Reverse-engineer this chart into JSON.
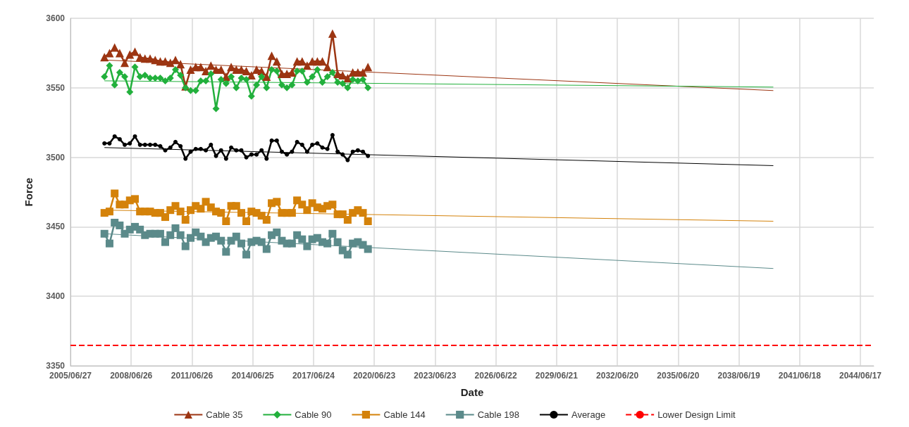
{
  "chart_data": {
    "type": "line",
    "xlabel": "Date",
    "ylabel": "Force",
    "x": [
      "2007-03",
      "2007-06",
      "2007-09",
      "2007-12",
      "2008-03",
      "2008-06",
      "2008-09",
      "2008-12",
      "2009-03",
      "2009-06",
      "2009-09",
      "2009-12",
      "2010-03",
      "2010-06",
      "2010-09",
      "2010-12",
      "2011-03",
      "2011-06",
      "2011-09",
      "2011-12",
      "2012-03",
      "2012-06",
      "2012-09",
      "2012-12",
      "2013-03",
      "2013-06",
      "2013-09",
      "2013-12",
      "2014-03",
      "2014-06",
      "2014-09",
      "2014-12",
      "2015-03",
      "2015-06",
      "2015-09",
      "2015-12",
      "2016-03",
      "2016-06",
      "2016-09",
      "2016-12",
      "2017-03",
      "2017-06",
      "2017-09",
      "2017-12",
      "2018-03",
      "2018-06",
      "2018-09",
      "2018-12",
      "2019-03",
      "2019-06",
      "2019-09",
      "2019-12",
      "2020-03"
    ],
    "series": [
      {
        "name": "Cable 35",
        "color": "#9c3512",
        "marker": "triangle",
        "values": [
          3572,
          3575,
          3579,
          3575,
          3568,
          3574,
          3576,
          3572,
          3571,
          3571,
          3570,
          3569,
          3569,
          3568,
          3570,
          3567,
          3551,
          3563,
          3565,
          3565,
          3562,
          3566,
          3563,
          3563,
          3558,
          3565,
          3563,
          3563,
          3562,
          3559,
          3563,
          3562,
          3558,
          3573,
          3569,
          3560,
          3560,
          3561,
          3569,
          3569,
          3566,
          3569,
          3569,
          3569,
          3565,
          3589,
          3560,
          3559,
          3557,
          3561,
          3561,
          3561,
          3565
        ]
      },
      {
        "name": "Cable 90",
        "color": "#22b03c",
        "marker": "diamond",
        "values": [
          3558,
          3566,
          3552,
          3561,
          3558,
          3547,
          3565,
          3558,
          3559,
          3557,
          3557,
          3557,
          3555,
          3557,
          3563,
          3559,
          3550,
          3548,
          3548,
          3555,
          3555,
          3560,
          3535,
          3556,
          3553,
          3558,
          3550,
          3557,
          3556,
          3544,
          3552,
          3558,
          3550,
          3563,
          3562,
          3552,
          3550,
          3552,
          3562,
          3562,
          3554,
          3558,
          3563,
          3554,
          3558,
          3561,
          3554,
          3553,
          3550,
          3556,
          3555,
          3556,
          3550
        ]
      },
      {
        "name": "Cable 144",
        "color": "#d4820a",
        "marker": "square",
        "values": [
          3460,
          3461,
          3474,
          3466,
          3466,
          3469,
          3470,
          3461,
          3461,
          3461,
          3460,
          3460,
          3457,
          3462,
          3465,
          3461,
          3455,
          3462,
          3465,
          3463,
          3468,
          3464,
          3461,
          3460,
          3454,
          3465,
          3465,
          3460,
          3454,
          3461,
          3460,
          3458,
          3455,
          3467,
          3468,
          3460,
          3460,
          3460,
          3469,
          3466,
          3462,
          3467,
          3464,
          3463,
          3465,
          3466,
          3459,
          3459,
          3455,
          3460,
          3462,
          3460,
          3454
        ]
      },
      {
        "name": "Cable 198",
        "color": "#5b8a8a",
        "marker": "square",
        "values": [
          3445,
          3438,
          3453,
          3451,
          3445,
          3448,
          3450,
          3448,
          3444,
          3445,
          3445,
          3445,
          3439,
          3444,
          3449,
          3444,
          3436,
          3442,
          3446,
          3443,
          3439,
          3442,
          3443,
          3440,
          3432,
          3440,
          3443,
          3438,
          3430,
          3439,
          3440,
          3439,
          3434,
          3444,
          3446,
          3440,
          3438,
          3438,
          3444,
          3441,
          3436,
          3441,
          3442,
          3439,
          3438,
          3445,
          3439,
          3433,
          3430,
          3438,
          3439,
          3437,
          3434
        ]
      },
      {
        "name": "Average",
        "color": "#000000",
        "marker": "circle",
        "values": [
          3510,
          3510,
          3515,
          3513,
          3509,
          3510,
          3515,
          3509,
          3509,
          3509,
          3509,
          3508,
          3505,
          3507,
          3511,
          3508,
          3499,
          3504,
          3506,
          3506,
          3505,
          3509,
          3501,
          3505,
          3499,
          3507,
          3505,
          3505,
          3500,
          3502,
          3502,
          3505,
          3499,
          3512,
          3512,
          3504,
          3502,
          3504,
          3511,
          3509,
          3504,
          3509,
          3510,
          3507,
          3506,
          3516,
          3504,
          3502,
          3498,
          3504,
          3505,
          3504,
          3501
        ]
      },
      {
        "color": "#9c3512",
        "marker": "none",
        "x": [
          "2007-03",
          "2040-03"
        ],
        "values": [
          3570,
          3548
        ]
      },
      {
        "color": "#22b03c",
        "marker": "none",
        "x": [
          "2007-03",
          "2040-03"
        ],
        "values": [
          3555,
          3550.5
        ]
      },
      {
        "color": "#d4820a",
        "marker": "none",
        "x": [
          "2007-03",
          "2040-03"
        ],
        "values": [
          3462,
          3454
        ]
      },
      {
        "color": "#5b8a8a",
        "marker": "none",
        "x": [
          "2007-03",
          "2040-03"
        ],
        "values": [
          3445,
          3420
        ]
      },
      {
        "color": "#000000",
        "marker": "none",
        "x": [
          "2007-03",
          "2040-03"
        ],
        "values": [
          3507,
          3494
        ]
      }
    ],
    "ref_lines": [
      {
        "axis": "y",
        "value": 3365,
        "label": "Lower Design Limit",
        "color": "#ff0000",
        "line_style": "dashed"
      }
    ],
    "xlim": [
      "2005-06-27",
      "2045-02-13"
    ],
    "xticks": [
      {
        "value": "2005-06-27",
        "label": "2005/06/27"
      },
      {
        "value": "2008-06-26",
        "label": "2008/06/26"
      },
      {
        "value": "2011-06-26",
        "label": "2011/06/26"
      },
      {
        "value": "2014-06-25",
        "label": "2014/06/25"
      },
      {
        "value": "2017-06-24",
        "label": "2017/06/24"
      },
      {
        "value": "2020-06-23",
        "label": "2020/06/23"
      },
      {
        "value": "2023-06-23",
        "label": "2023/06/23"
      },
      {
        "value": "2026-06-22",
        "label": "2026/06/22"
      },
      {
        "value": "2029-06-21",
        "label": "2029/06/21"
      },
      {
        "value": "2032-06-20",
        "label": "2032/06/20"
      },
      {
        "value": "2035-06-20",
        "label": "2035/06/20"
      },
      {
        "value": "2038-06-19",
        "label": "2038/06/19"
      },
      {
        "value": "2041-06-18",
        "label": "2041/06/18"
      },
      {
        "value": "2044-06-17",
        "label": "2044/06/17"
      }
    ],
    "ylim": [
      3350,
      3600
    ],
    "yticks": [
      3350,
      3400,
      3450,
      3500,
      3550,
      3600
    ],
    "grid": true,
    "legend": "bottom"
  }
}
